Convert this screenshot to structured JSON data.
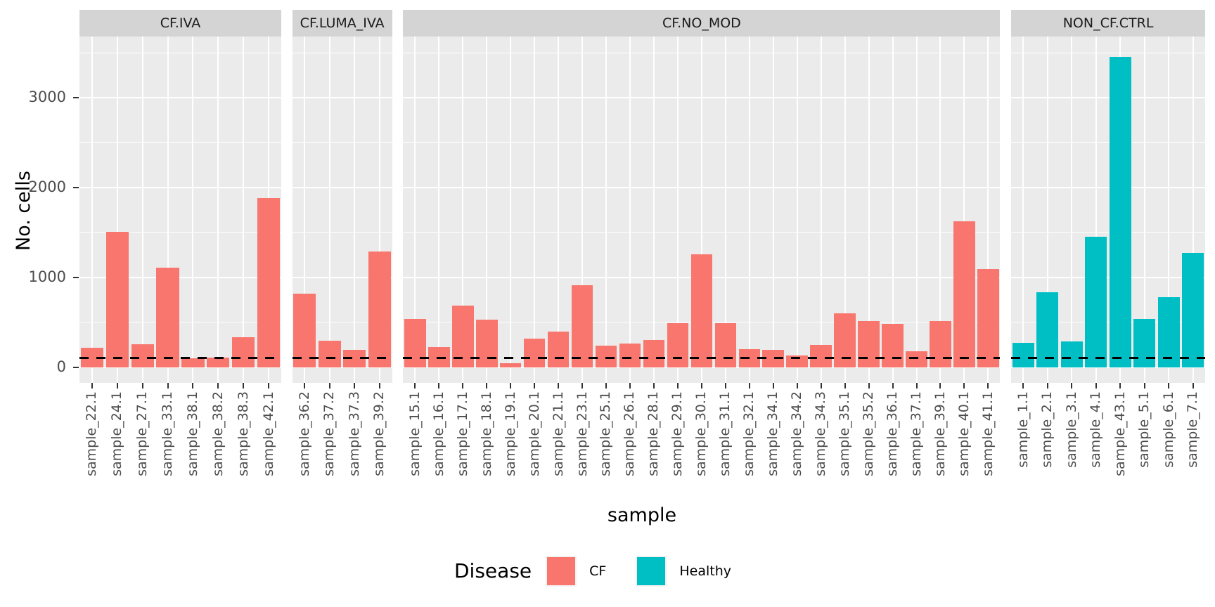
{
  "chart_data": {
    "type": "bar",
    "title": "",
    "ylabel": "No. cells",
    "xlabel": "sample",
    "yticks": [
      0,
      1000,
      2000,
      3000
    ],
    "minor_gridlines": [
      500,
      1500,
      2500,
      3500
    ],
    "ylim": [
      -175,
      3680
    ],
    "grid": "on",
    "panel_background": "#ebebeb",
    "strip_background": "#d4d4d4",
    "gridline_color": "#ffffff",
    "reference_line": {
      "y": 100,
      "linetype": "dashed",
      "color": "#000000"
    },
    "colors": {
      "CF": "#F8766D",
      "Healthy": "#00BFC4"
    },
    "legend": {
      "title": "Disease",
      "position": "bottom",
      "entries": [
        {
          "label": "CF",
          "color": "#F8766D"
        },
        {
          "label": "Healthy",
          "color": "#00BFC4"
        }
      ]
    },
    "facets": [
      {
        "label": "CF.IVA",
        "disease": "CF",
        "samples": [
          "sample_22.1",
          "sample_24.1",
          "sample_27.1",
          "sample_33.1",
          "sample_38.1",
          "sample_38.2",
          "sample_38.3",
          "sample_42.1"
        ],
        "values": [
          215,
          1510,
          255,
          1105,
          95,
          110,
          335,
          1880
        ]
      },
      {
        "label": "CF.LUMA_IVA",
        "disease": "CF",
        "samples": [
          "sample_36.2",
          "sample_37.2",
          "sample_37.3",
          "sample_39.2"
        ],
        "values": [
          815,
          295,
          195,
          1290
        ]
      },
      {
        "label": "CF.NO_MOD",
        "disease": "CF",
        "samples": [
          "sample_15.1",
          "sample_16.1",
          "sample_17.1",
          "sample_18.1",
          "sample_19.1",
          "sample_20.1",
          "sample_21.1",
          "sample_23.1",
          "sample_25.1",
          "sample_26.1",
          "sample_28.1",
          "sample_29.1",
          "sample_30.1",
          "sample_31.1",
          "sample_32.1",
          "sample_34.1",
          "sample_34.2",
          "sample_34.3",
          "sample_35.1",
          "sample_35.2",
          "sample_36.1",
          "sample_37.1",
          "sample_39.1",
          "sample_40.1",
          "sample_41.1"
        ],
        "values": [
          535,
          225,
          685,
          530,
          45,
          315,
          395,
          910,
          240,
          265,
          305,
          490,
          1260,
          490,
          200,
          195,
          130,
          250,
          600,
          515,
          485,
          180,
          515,
          1620,
          1090
        ]
      },
      {
        "label": "NON_CF.CTRL",
        "disease": "Healthy",
        "samples": [
          "sample_1.1",
          "sample_2.1",
          "sample_3.1",
          "sample_4.1",
          "sample_43.1",
          "sample_5.1",
          "sample_6.1",
          "sample_7.1"
        ],
        "values": [
          270,
          830,
          290,
          1450,
          3450,
          540,
          780,
          1275
        ]
      }
    ]
  }
}
